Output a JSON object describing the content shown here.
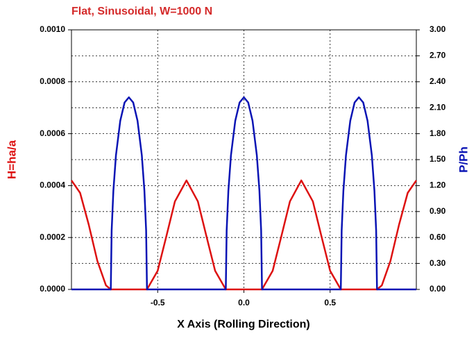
{
  "chart_data": {
    "type": "line",
    "title": "Flat, Sinusoidal, W=1000 N",
    "xlabel": "X Axis (Rolling Direction)",
    "ylabel": "H=ha/a",
    "y2label": "P/Ph",
    "xlim": [
      -1,
      1
    ],
    "xticks": [
      -0.5,
      {
        "value": 0,
        "label": "0.0"
      },
      0.5
    ],
    "ylim": [
      0,
      0.001
    ],
    "yticks": [
      {
        "value": 0,
        "label": "0.0000"
      },
      {
        "value": 0.0002,
        "label": "0.0002"
      },
      {
        "value": 0.0004,
        "label": "0.0004"
      },
      {
        "value": 0.0006,
        "label": "0.0006"
      },
      {
        "value": 0.0008,
        "label": "0.0008"
      },
      {
        "value": 0.001,
        "label": "0.0010"
      }
    ],
    "y2lim": [
      0,
      3
    ],
    "y2ticks": [
      {
        "value": 0,
        "label": "0.00"
      },
      {
        "value": 0.3,
        "label": "0.30"
      },
      {
        "value": 0.6,
        "label": "0.60"
      },
      {
        "value": 0.9,
        "label": "0.90"
      },
      {
        "value": 1.2,
        "label": "1.20"
      },
      {
        "value": 1.5,
        "label": "1.50"
      },
      {
        "value": 1.8,
        "label": "1.80"
      },
      {
        "value": 2.1,
        "label": "2.10"
      },
      {
        "value": 2.4,
        "label": "2.40"
      },
      {
        "value": 2.7,
        "label": "2.70"
      },
      {
        "value": 3,
        "label": "3.00"
      }
    ],
    "grid": true,
    "series": [
      {
        "color": "#dd1111",
        "axis": "y",
        "x": [
          -1,
          -0.95,
          -0.9,
          -0.85,
          -0.8,
          -0.772,
          -0.562,
          -0.5,
          -0.45,
          -0.4,
          -0.333,
          -0.267,
          -0.217,
          -0.167,
          -0.105,
          0.105,
          0.167,
          0.217,
          0.267,
          0.333,
          0.4,
          0.45,
          0.5,
          0.562,
          0.772,
          0.8,
          0.85,
          0.9,
          0.95,
          1
        ],
        "values": [
          0.00042,
          0.000372,
          0.00025,
          0.00011,
          1.55e-05,
          0,
          0,
          7.2e-05,
          0.000204,
          0.000339,
          0.00042,
          0.000339,
          0.000204,
          7.2e-05,
          0,
          0,
          7.2e-05,
          0.000204,
          0.000339,
          0.00042,
          0.000339,
          0.000204,
          7.2e-05,
          0,
          0,
          1.55e-05,
          0.00011,
          0.00025,
          0.000372,
          0.00042
        ]
      },
      {
        "color": "#0a14b4",
        "axis": "y2",
        "x": [
          -1,
          -0.772,
          -0.767,
          -0.757,
          -0.742,
          -0.717,
          -0.692,
          -0.667,
          -0.642,
          -0.617,
          -0.592,
          -0.577,
          -0.567,
          -0.562,
          -0.105,
          -0.1,
          -0.09,
          -0.075,
          -0.05,
          -0.025,
          0,
          0.025,
          0.05,
          0.075,
          0.09,
          0.1,
          0.105,
          0.562,
          0.567,
          0.577,
          0.592,
          0.617,
          0.642,
          0.667,
          0.692,
          0.717,
          0.742,
          0.757,
          0.767,
          0.772,
          1
        ],
        "values": [
          0,
          0,
          0.68,
          1.14,
          1.55,
          1.95,
          2.16,
          2.22,
          2.16,
          1.95,
          1.55,
          1.14,
          0.68,
          0,
          0,
          0.68,
          1.14,
          1.55,
          1.95,
          2.16,
          2.22,
          2.16,
          1.95,
          1.55,
          1.14,
          0.68,
          0,
          0,
          0.68,
          1.14,
          1.55,
          1.95,
          2.16,
          2.22,
          2.16,
          1.95,
          1.55,
          1.14,
          0.68,
          0,
          0
        ]
      }
    ]
  }
}
